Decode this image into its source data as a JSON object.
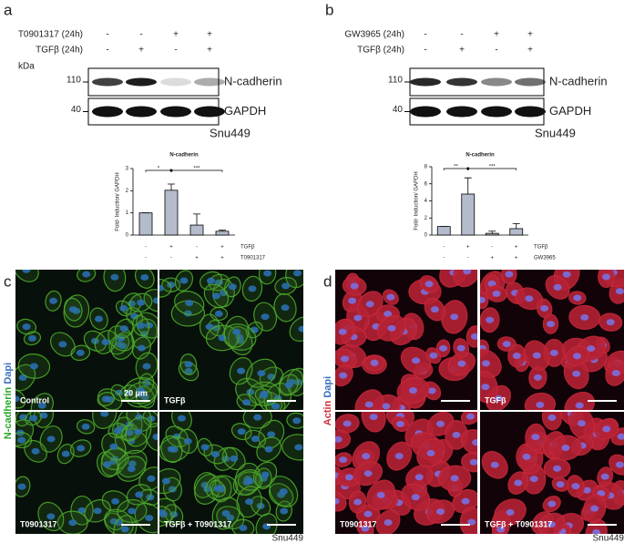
{
  "panels": {
    "a": {
      "label": "a",
      "rows": [
        {
          "name": "T0901317 (24h)",
          "signs": [
            "-",
            "-",
            "+",
            "+"
          ]
        },
        {
          "name": "TGFβ (24h)",
          "signs": [
            "-",
            "+",
            "-",
            "+"
          ]
        }
      ],
      "kda": "kDa",
      "blots": [
        {
          "marker": "110",
          "protein": "N-cadherin"
        },
        {
          "marker": "40",
          "protein": "GAPDH"
        }
      ],
      "cell_line": "Snu449"
    },
    "b": {
      "label": "b",
      "rows": [
        {
          "name": "GW3965 (24h)",
          "signs": [
            "-",
            "-",
            "+",
            "+"
          ]
        },
        {
          "name": "TGFβ (24h)",
          "signs": [
            "-",
            "+",
            "-",
            "+"
          ]
        }
      ],
      "blots": [
        {
          "marker": "110",
          "protein": "N-cadherin"
        },
        {
          "marker": "40",
          "protein": "GAPDH"
        }
      ],
      "cell_line": "Snu449"
    },
    "c": {
      "label": "c",
      "stain": [
        "N-cadherin",
        "Dapi"
      ],
      "images": [
        "Control",
        "TGFβ",
        "T0901317",
        "TGFβ + T0901317"
      ],
      "scale": "20 µm",
      "cell_line": "Snu449"
    },
    "d": {
      "label": "d",
      "stain": [
        "Actin",
        "Dapi"
      ],
      "images": [
        "",
        "TGFβ",
        "T0901317",
        "TGFβ + T0901317"
      ],
      "cell_line": "Snu449"
    }
  },
  "chart_data": [
    {
      "type": "bar",
      "title": "N-cadherin",
      "y_label": "Fold- Induction/ GAPDH",
      "color": "#b4bccc",
      "values": [
        1,
        2.02,
        0.45,
        0.17
      ],
      "errors": [
        0,
        0.28,
        0.5,
        0.05
      ],
      "ylim": [
        0,
        3
      ],
      "yticks": [
        0,
        1,
        2,
        3
      ],
      "significance": [
        "*",
        "***"
      ],
      "treatment_rows": [
        {
          "name": "TGFβ",
          "signs": [
            "-",
            "+",
            "-",
            "+"
          ]
        },
        {
          "name": "T0901317",
          "signs": [
            "-",
            "-",
            "+",
            "+"
          ]
        }
      ]
    },
    {
      "type": "bar",
      "title": "N-cadherin",
      "y_label": "Fold- Induction/ GAPDH",
      "color": "#b4bccc",
      "values": [
        1,
        4.8,
        0.2,
        0.75
      ],
      "errors": [
        0,
        1.9,
        0.25,
        0.6
      ],
      "ylim": [
        0,
        8
      ],
      "yticks": [
        0,
        2,
        4,
        6,
        8
      ],
      "significance": [
        "**",
        "***"
      ],
      "treatment_rows": [
        {
          "name": "TGFβ",
          "signs": [
            "-",
            "+",
            "-",
            "+"
          ]
        },
        {
          "name": "GW3965",
          "signs": [
            "-",
            "-",
            "+",
            "+"
          ]
        }
      ]
    }
  ]
}
